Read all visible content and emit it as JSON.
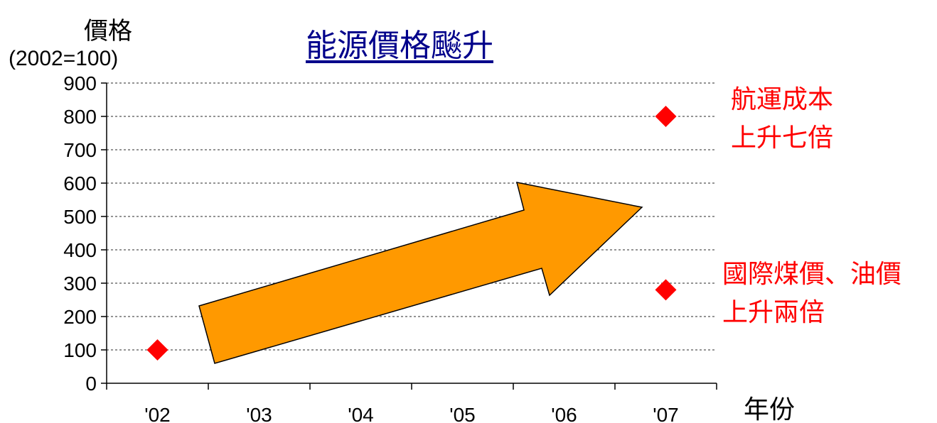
{
  "chart_data": {
    "type": "scatter",
    "title": "能源價格飈升",
    "ylabel_line1": "價格",
    "ylabel_line2": "(2002=100)",
    "xlabel": "年份",
    "ylim": [
      0,
      900
    ],
    "yticks": [
      0,
      100,
      200,
      300,
      400,
      500,
      600,
      700,
      800,
      900
    ],
    "categories": [
      "'02",
      "'03",
      "'04",
      "'05",
      "'06",
      "'07"
    ],
    "grid": true,
    "points": [
      {
        "x": "'02",
        "y": 100
      },
      {
        "x": "'07",
        "y": 800
      },
      {
        "x": "'07",
        "y": 280
      }
    ],
    "annotations": [
      {
        "line1": "航運成本",
        "line2": "上升七倍"
      },
      {
        "line1": "國際煤價、油價",
        "line2": "上升兩倍"
      }
    ],
    "colors": {
      "marker": "#ff0000",
      "arrow_fill": "#ff9900",
      "arrow_stroke": "#000000",
      "title": "#00008b",
      "annotation": "#ff0000"
    }
  }
}
